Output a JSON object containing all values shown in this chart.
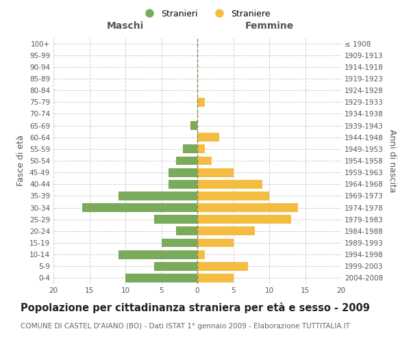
{
  "age_groups": [
    "0-4",
    "5-9",
    "10-14",
    "15-19",
    "20-24",
    "25-29",
    "30-34",
    "35-39",
    "40-44",
    "45-49",
    "50-54",
    "55-59",
    "60-64",
    "65-69",
    "70-74",
    "75-79",
    "80-84",
    "85-89",
    "90-94",
    "95-99",
    "100+"
  ],
  "birth_years": [
    "2004-2008",
    "1999-2003",
    "1994-1998",
    "1989-1993",
    "1984-1988",
    "1979-1983",
    "1974-1978",
    "1969-1973",
    "1964-1968",
    "1959-1963",
    "1954-1958",
    "1949-1953",
    "1944-1948",
    "1939-1943",
    "1934-1938",
    "1929-1933",
    "1924-1928",
    "1919-1923",
    "1914-1918",
    "1909-1913",
    "≤ 1908"
  ],
  "maschi": [
    10,
    6,
    11,
    5,
    3,
    6,
    16,
    11,
    4,
    4,
    3,
    2,
    0,
    1,
    0,
    0,
    0,
    0,
    0,
    0,
    0
  ],
  "femmine": [
    5,
    7,
    1,
    5,
    8,
    13,
    14,
    10,
    9,
    5,
    2,
    1,
    3,
    0,
    0,
    1,
    0,
    0,
    0,
    0,
    0
  ],
  "maschi_color": "#7aab5a",
  "femmine_color": "#f5bc42",
  "bar_height": 0.75,
  "xlim": [
    -20,
    20
  ],
  "title": "Popolazione per cittadinanza straniera per età e sesso - 2009",
  "subtitle": "COMUNE DI CASTEL D'AIANO (BO) - Dati ISTAT 1° gennaio 2009 - Elaborazione TUTTITALIA.IT",
  "xlabel_left": "Maschi",
  "xlabel_right": "Femmine",
  "ylabel_left": "Fasce di età",
  "ylabel_right": "Anni di nascita",
  "legend_maschi": "Stranieri",
  "legend_femmine": "Straniere",
  "xticks": [
    -20,
    -15,
    -10,
    -5,
    0,
    5,
    10,
    15,
    20
  ],
  "xtick_labels": [
    "20",
    "15",
    "10",
    "5",
    "0",
    "5",
    "10",
    "15",
    "20"
  ],
  "background_color": "#ffffff",
  "grid_color": "#cccccc",
  "title_fontsize": 10.5,
  "subtitle_fontsize": 7.5,
  "axis_label_fontsize": 9,
  "tick_fontsize": 7.5,
  "legend_fontsize": 9
}
